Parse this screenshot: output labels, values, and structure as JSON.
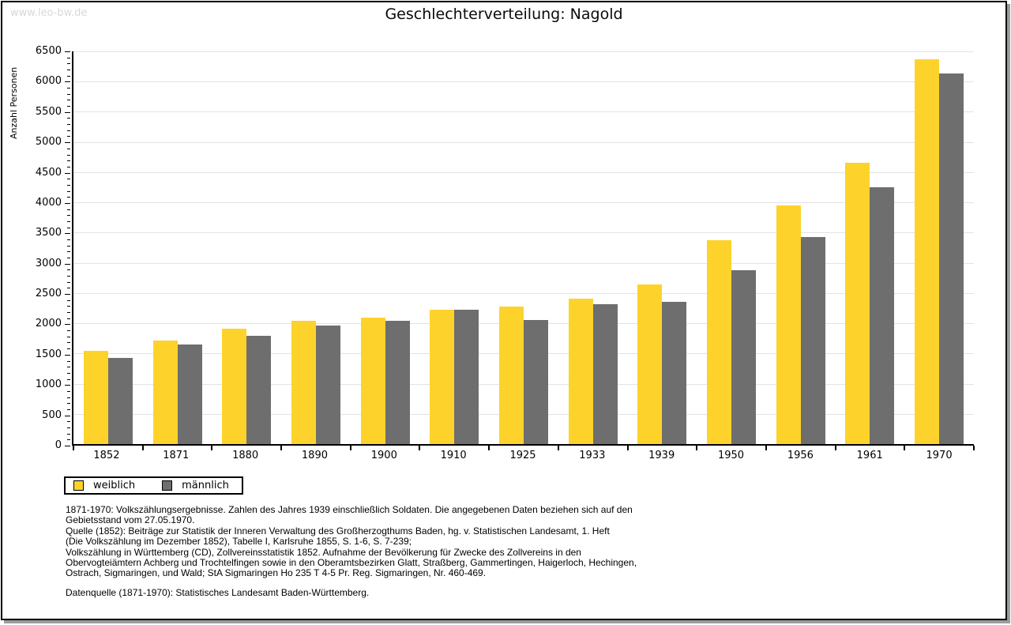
{
  "watermark": "www.leo-bw.de",
  "header": {
    "title": "Geschlechterverteilung: Nagold"
  },
  "chart_data": {
    "type": "bar",
    "title": "Geschlechterverteilung: Nagold",
    "xlabel": "",
    "ylabel": "Anzahl Personen",
    "ylim": [
      0,
      6500
    ],
    "ytick_step": 500,
    "minor_tick_step": 100,
    "grid": true,
    "legend_position": "bottom-left",
    "categories": [
      "1852",
      "1871",
      "1880",
      "1890",
      "1900",
      "1910",
      "1925",
      "1933",
      "1939",
      "1950",
      "1956",
      "1961",
      "1970"
    ],
    "series": [
      {
        "name": "weiblich",
        "color": "#fdd32b",
        "values": [
          1550,
          1720,
          1910,
          2040,
          2090,
          2230,
          2270,
          2410,
          2640,
          3370,
          3950,
          4650,
          6370
        ]
      },
      {
        "name": "männlich",
        "color": "#6e6e6e",
        "values": [
          1420,
          1650,
          1790,
          1960,
          2040,
          2220,
          2060,
          2320,
          2360,
          2880,
          3430,
          4250,
          6140
        ]
      }
    ]
  },
  "legend": {
    "items": [
      {
        "label": "weiblich",
        "color": "#fdd32b"
      },
      {
        "label": "männlich",
        "color": "#6e6e6e"
      }
    ]
  },
  "footnotes": {
    "block1": "1871-1970: Volkszählungsergebnisse. Zahlen des Jahres 1939 einschließlich Soldaten. Die angegebenen Daten beziehen sich auf den\nGebietsstand vom 27.05.1970.\nQuelle (1852): Beiträge zur Statistik der Inneren Verwaltung des Großherzogthums Baden, hg. v. Statistischen Landesamt, 1. Heft\n(Die Volkszählung im Dezember 1852), Tabelle I, Karlsruhe 1855, S. 1-6, S. 7-239;\nVolkszählung in Württemberg (CD), Zollvereinsstatistik 1852. Aufnahme der Bevölkerung für Zwecke des Zollvereins in den\nObervogteiämtern Achberg und Trochtelfingen sowie in den Oberamtsbezirken Glatt, Straßberg, Gammertingen, Haigerloch, Hechingen,\nOstrach, Sigmaringen, und Wald; StA Sigmaringen Ho 235 T 4-5 Pr. Reg. Sigmaringen, Nr. 460-469.",
    "block2": "Datenquelle (1871-1970): Statistisches Landesamt Baden-Württemberg."
  },
  "colors": {
    "female_bar": "#fdd32b",
    "male_bar": "#6e6e6e",
    "gridline": "#e3e3e3",
    "axis": "#000000",
    "watermark": "#d8d8d8",
    "frame_border": "#000000",
    "frame_shadow": "#9c9c9c",
    "background": "#ffffff"
  }
}
